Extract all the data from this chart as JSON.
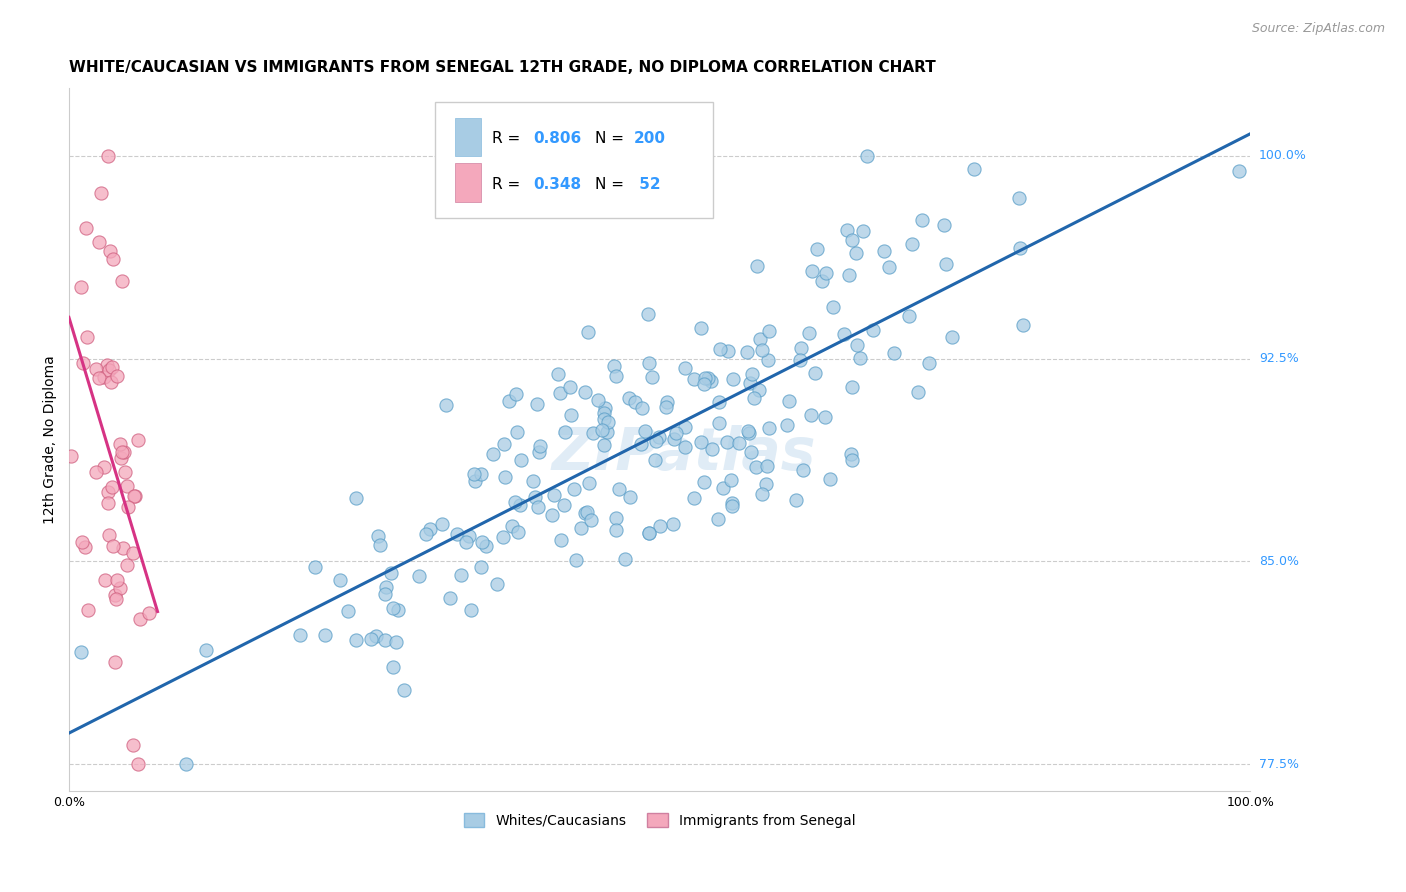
{
  "title": "WHITE/CAUCASIAN VS IMMIGRANTS FROM SENEGAL 12TH GRADE, NO DIPLOMA CORRELATION CHART",
  "source": "Source: ZipAtlas.com",
  "ylabel": "12th Grade, No Diploma",
  "xlim": [
    0.0,
    1.0
  ],
  "ylim": [
    0.765,
    1.025
  ],
  "blue_R": 0.806,
  "blue_N": 200,
  "pink_R": 0.348,
  "pink_N": 52,
  "blue_color": "#a8cce4",
  "pink_color": "#f4a8bc",
  "blue_line_color": "#2166ac",
  "pink_line_color": "#d63384",
  "watermark": "ZIPatlas",
  "legend_blue_label": "Whites/Caucasians",
  "legend_pink_label": "Immigrants from Senegal",
  "title_fontsize": 11,
  "axis_label_fontsize": 10,
  "tick_label_fontsize": 9,
  "legend_fontsize": 11,
  "watermark_fontsize": 42,
  "ytick_vals": [
    0.775,
    0.85,
    0.925,
    1.0
  ],
  "ytick_labels": [
    "77.5%",
    "85.0%",
    "92.5%",
    "100.0%"
  ]
}
